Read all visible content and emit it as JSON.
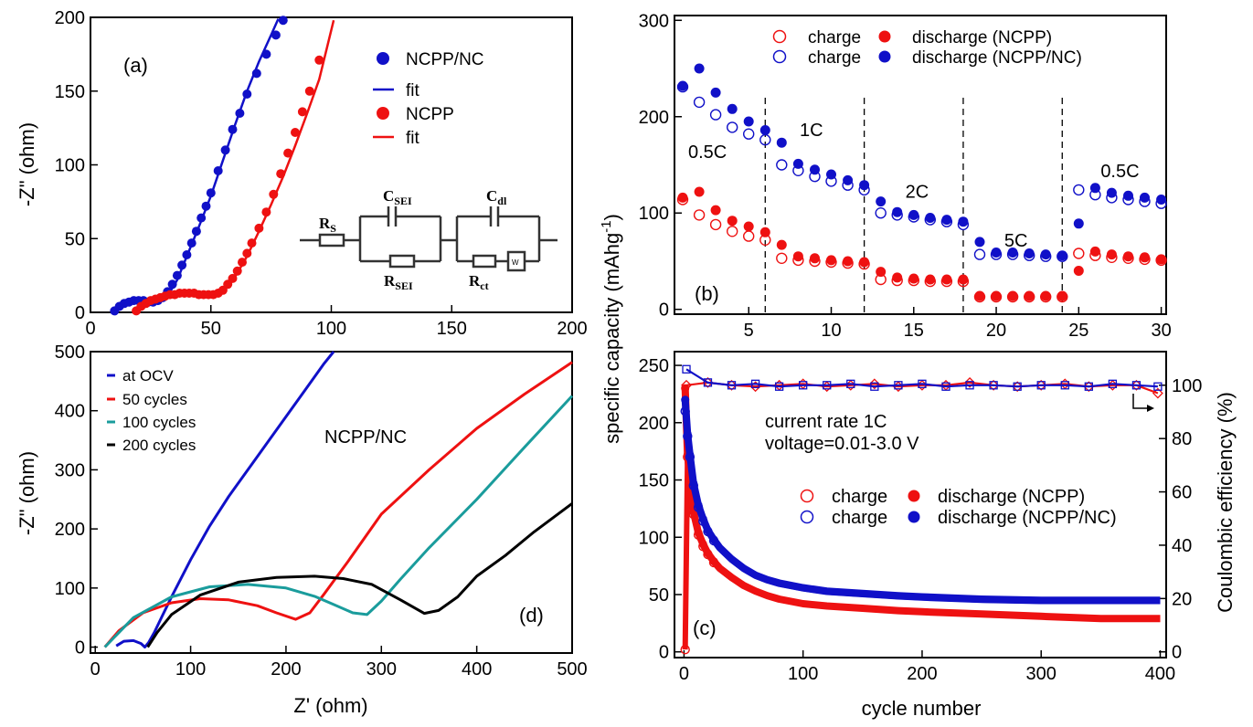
{
  "chart_data": [
    {
      "panel": "a",
      "type": "scatter",
      "tag": "(a)",
      "xlim": [
        0,
        200
      ],
      "ylim": [
        0,
        200
      ],
      "xticks": [
        0,
        50,
        100,
        150,
        200
      ],
      "yticks": [
        0,
        50,
        100,
        150,
        200
      ],
      "ylabel": "-Z\" (ohm)",
      "xlabel": "",
      "legend_position": "top-right",
      "series": [
        {
          "name": "NCPP/NC",
          "mode": "markers",
          "color": "#1010c8",
          "x": [
            10,
            12,
            14,
            16,
            18,
            20,
            22,
            24,
            26,
            28,
            30,
            32,
            34,
            36,
            38,
            40,
            42,
            44,
            46,
            48,
            50,
            53,
            56,
            59,
            62,
            65,
            69,
            73,
            77,
            80
          ],
          "y": [
            1,
            4,
            6,
            7,
            8,
            8,
            8,
            7,
            7,
            8,
            10,
            14,
            19,
            25,
            32,
            39,
            47,
            55,
            64,
            72,
            81,
            96,
            110,
            124,
            135,
            148,
            162,
            175,
            188,
            198
          ]
        },
        {
          "name": "fit",
          "mode": "line",
          "color": "#1010c8",
          "x": [
            10,
            14,
            18,
            22,
            26,
            29,
            32,
            36,
            40,
            45,
            50,
            55,
            60,
            65,
            70,
            75,
            78
          ],
          "y": [
            0,
            5,
            7,
            8,
            7,
            7,
            11,
            22,
            38,
            58,
            79,
            103,
            127,
            150,
            170,
            188,
            199
          ]
        },
        {
          "name": "NCPP",
          "mode": "markers",
          "color": "#ee1111",
          "x": [
            19,
            21,
            23,
            25,
            27,
            29,
            31,
            33,
            35,
            37,
            39,
            41,
            43,
            45,
            47,
            49,
            51,
            53,
            55,
            57,
            59,
            61,
            63,
            65,
            67,
            70,
            73,
            76,
            79,
            82,
            85,
            88,
            91,
            95
          ],
          "y": [
            1,
            4,
            6,
            8,
            9,
            10,
            11,
            12,
            12,
            13,
            13,
            13,
            13,
            12,
            12,
            12,
            12,
            13,
            15,
            19,
            23,
            28,
            34,
            40,
            47,
            57,
            68,
            80,
            94,
            108,
            122,
            136,
            150,
            171
          ]
        },
        {
          "name": "fit",
          "mode": "line",
          "color": "#ee1111",
          "x": [
            18,
            24,
            30,
            36,
            42,
            48,
            53,
            56,
            60,
            65,
            70,
            75,
            80,
            85,
            90,
            95,
            101
          ],
          "y": [
            0,
            7,
            10,
            12,
            13,
            12,
            13,
            16,
            24,
            38,
            55,
            73,
            92,
            113,
            135,
            158,
            198
          ]
        }
      ],
      "inset": {
        "labels": [
          {
            "main": "R",
            "sub": "S"
          },
          {
            "main": "C",
            "sub": "SEI"
          },
          {
            "main": "R",
            "sub": "SEI"
          },
          {
            "main": "C",
            "sub": "dl"
          },
          {
            "main": "R",
            "sub": "ct"
          },
          {
            "main": "W",
            "sub": ""
          }
        ]
      }
    },
    {
      "panel": "b",
      "type": "scatter",
      "tag": "(b)",
      "xlim": [
        0.5,
        30.3
      ],
      "ylim": [
        -5,
        305
      ],
      "xticks": [
        5,
        10,
        15,
        20,
        25,
        30
      ],
      "yticks": [
        0,
        100,
        200,
        300
      ],
      "xlabel": "",
      "ylabel": "",
      "legend_position": "top",
      "rate_dividers_x": [
        6,
        12,
        18,
        24
      ],
      "rate_labels": [
        {
          "text": "0.5C",
          "x": 2.5,
          "y": 157
        },
        {
          "text": "1C",
          "x": 8.8,
          "y": 180
        },
        {
          "text": "2C",
          "x": 15.2,
          "y": 116
        },
        {
          "text": "5C",
          "x": 21.2,
          "y": 65
        },
        {
          "text": "0.5C",
          "x": 27.5,
          "y": 137
        }
      ],
      "cycles": [
        1,
        2,
        3,
        4,
        5,
        6,
        7,
        8,
        9,
        10,
        11,
        12,
        13,
        14,
        15,
        16,
        17,
        18,
        19,
        20,
        21,
        22,
        23,
        24,
        25,
        26,
        27,
        28,
        29,
        30
      ],
      "series": [
        {
          "name": "charge",
          "group": "NCPP",
          "filled": false,
          "color": "#ee1111",
          "values": [
            114,
            98,
            88,
            81,
            76,
            72,
            53,
            51,
            50,
            49,
            48,
            47,
            31,
            30,
            30,
            29,
            29,
            29,
            13,
            13,
            13,
            13,
            13,
            13,
            58,
            56,
            54,
            53,
            52,
            51
          ]
        },
        {
          "name": "discharge (NCPP)",
          "group": "NCPP",
          "filled": true,
          "color": "#ee1111",
          "values": [
            116,
            122,
            103,
            92,
            86,
            80,
            67,
            55,
            53,
            51,
            50,
            49,
            39,
            33,
            32,
            31,
            31,
            31,
            14,
            14,
            14,
            14,
            14,
            14,
            40,
            60,
            57,
            55,
            54,
            52
          ]
        },
        {
          "name": "charge",
          "group": "NCPP/NC",
          "filled": false,
          "color": "#1010c8",
          "values": [
            231,
            215,
            202,
            189,
            182,
            176,
            150,
            144,
            138,
            133,
            129,
            124,
            100,
            98,
            96,
            93,
            91,
            88,
            57,
            57,
            57,
            56,
            55,
            55,
            124,
            119,
            116,
            114,
            112,
            110
          ]
        },
        {
          "name": "discharge (NCPP/NC)",
          "group": "NCPP/NC",
          "filled": true,
          "color": "#1010c8",
          "values": [
            232,
            250,
            225,
            208,
            195,
            186,
            173,
            151,
            145,
            140,
            134,
            129,
            112,
            101,
            98,
            95,
            93,
            91,
            70,
            59,
            59,
            58,
            57,
            56,
            89,
            126,
            121,
            118,
            116,
            114
          ]
        }
      ]
    },
    {
      "panel": "c",
      "type": "scatter",
      "tag": "(c)",
      "xlim": [
        -8,
        405
      ],
      "ylim": [
        -5,
        262
      ],
      "y2lim": [
        -2.15,
        112.6
      ],
      "xticks": [
        0,
        100,
        200,
        300,
        400
      ],
      "yticks": [
        0,
        50,
        100,
        150,
        200,
        250
      ],
      "y2ticks": [
        0,
        20,
        40,
        60,
        80,
        100
      ],
      "xlabel": "cycle number",
      "ylabel": "specific capacity (mAhg",
      "ylabel_sup": "-1",
      "ylabel_close": ")",
      "y2label": "Coulombic efficiency (%)",
      "legend_position": "center-right",
      "annotations": [
        "current rate 1C",
        "voltage=0.01-3.0 V"
      ],
      "series": [
        {
          "name": "charge",
          "group": "NCPP",
          "filled": false,
          "color": "#ee1111",
          "x": [
            1,
            3,
            5,
            8,
            12,
            16,
            20,
            25,
            30,
            40,
            50,
            60,
            70,
            80,
            100,
            120,
            150,
            180,
            200,
            250,
            300,
            350,
            400
          ],
          "values": [
            2,
            170,
            150,
            120,
            102,
            92,
            85,
            78,
            72,
            64,
            58,
            53,
            49,
            46,
            42,
            40,
            38,
            36,
            35,
            33,
            31,
            29,
            29
          ]
        },
        {
          "name": "discharge (NCPP)",
          "group": "NCPP",
          "filled": true,
          "color": "#ee1111",
          "x": [
            1,
            3,
            5,
            8,
            12,
            16,
            20,
            25,
            30,
            40,
            50,
            60,
            70,
            80,
            100,
            120,
            150,
            180,
            200,
            250,
            300,
            350,
            400
          ],
          "values": [
            230,
            172,
            152,
            122,
            104,
            94,
            86,
            79,
            73,
            65,
            58,
            53,
            49,
            46,
            42,
            40,
            38,
            36,
            35,
            33,
            31,
            29,
            29
          ]
        },
        {
          "name": "charge",
          "group": "NCPP/NC",
          "filled": false,
          "color": "#1010c8",
          "x": [
            1,
            3,
            5,
            8,
            12,
            16,
            20,
            25,
            30,
            40,
            50,
            60,
            70,
            80,
            100,
            120,
            150,
            180,
            200,
            250,
            300,
            350,
            400
          ],
          "values": [
            210,
            188,
            170,
            145,
            126,
            114,
            105,
            97,
            90,
            80,
            72,
            66,
            62,
            59,
            55,
            52,
            50,
            48,
            47,
            45,
            44,
            44,
            44
          ]
        },
        {
          "name": "discharge (NCPP/NC)",
          "group": "NCPP/NC",
          "filled": true,
          "color": "#1010c8",
          "x": [
            1,
            3,
            5,
            8,
            12,
            16,
            20,
            25,
            30,
            40,
            50,
            60,
            70,
            80,
            100,
            120,
            150,
            180,
            200,
            250,
            300,
            350,
            400
          ],
          "values": [
            220,
            190,
            172,
            147,
            128,
            116,
            106,
            98,
            91,
            81,
            73,
            67,
            63,
            60,
            56,
            53,
            51,
            49,
            48,
            46,
            45,
            45,
            45
          ]
        },
        {
          "name": "Coulombic efficiency (NCPP)",
          "axis": "y2",
          "marker": "diamond",
          "color": "#ee1111",
          "x": [
            2,
            20,
            40,
            60,
            80,
            100,
            120,
            140,
            160,
            180,
            200,
            220,
            240,
            260,
            280,
            300,
            320,
            340,
            360,
            380,
            398
          ],
          "values": [
            100,
            101,
            100,
            99.5,
            100,
            100.5,
            99.5,
            100,
            100.5,
            99.5,
            100,
            100,
            101,
            100,
            99.5,
            100,
            100.5,
            99.5,
            100,
            100,
            97
          ]
        },
        {
          "name": "Coulombic efficiency (NCPP/NC)",
          "axis": "y2",
          "marker": "square",
          "color": "#1010c8",
          "x": [
            2,
            20,
            40,
            60,
            80,
            100,
            120,
            140,
            160,
            180,
            200,
            220,
            240,
            260,
            280,
            300,
            320,
            340,
            360,
            380,
            398
          ],
          "values": [
            106,
            101,
            100,
            100.5,
            99.5,
            100,
            100,
            100.5,
            99.5,
            100,
            100.5,
            99.5,
            100,
            100,
            99.5,
            100,
            100,
            99.5,
            100.5,
            100,
            99.5
          ]
        }
      ]
    },
    {
      "panel": "d",
      "type": "line",
      "tag": "(d)",
      "xlim": [
        -5,
        500
      ],
      "ylim": [
        -10,
        500
      ],
      "xticks": [
        0,
        100,
        200,
        300,
        400,
        500
      ],
      "yticks": [
        0,
        100,
        200,
        300,
        400,
        500
      ],
      "xlabel": "Z' (ohm)",
      "ylabel": "-Z\" (ohm)",
      "legend_position": "top-left",
      "annotation": "NCPP/NC",
      "series": [
        {
          "name": "at OCV",
          "color": "#1010c8",
          "x": [
            22,
            30,
            40,
            48,
            52,
            56,
            62,
            70,
            80,
            100,
            120,
            140,
            160,
            180,
            200,
            220,
            240,
            250
          ],
          "y": [
            2,
            10,
            11,
            6,
            0,
            8,
            25,
            52,
            85,
            148,
            205,
            255,
            300,
            345,
            390,
            435,
            480,
            500
          ]
        },
        {
          "name": "50 cycles",
          "color": "#ee1111",
          "x": [
            10,
            25,
            50,
            80,
            110,
            140,
            170,
            190,
            210,
            225,
            240,
            265,
            300,
            350,
            400,
            450,
            500
          ],
          "y": [
            0,
            28,
            58,
            75,
            82,
            80,
            70,
            58,
            47,
            58,
            90,
            145,
            225,
            300,
            370,
            428,
            482
          ]
        },
        {
          "name": "100 cycles",
          "color": "#1a9c9c",
          "x": [
            10,
            40,
            80,
            120,
            160,
            200,
            230,
            250,
            270,
            285,
            300,
            320,
            350,
            400,
            450,
            500
          ],
          "y": [
            0,
            50,
            85,
            102,
            106,
            100,
            86,
            72,
            58,
            55,
            78,
            115,
            168,
            250,
            338,
            425
          ]
        },
        {
          "name": "200 cycles",
          "color": "#000000",
          "x": [
            55,
            65,
            80,
            110,
            150,
            190,
            230,
            260,
            290,
            320,
            345,
            360,
            380,
            400,
            430,
            460,
            500
          ],
          "y": [
            0,
            25,
            55,
            88,
            110,
            118,
            120,
            116,
            106,
            80,
            57,
            62,
            85,
            120,
            155,
            195,
            243
          ]
        }
      ]
    }
  ]
}
